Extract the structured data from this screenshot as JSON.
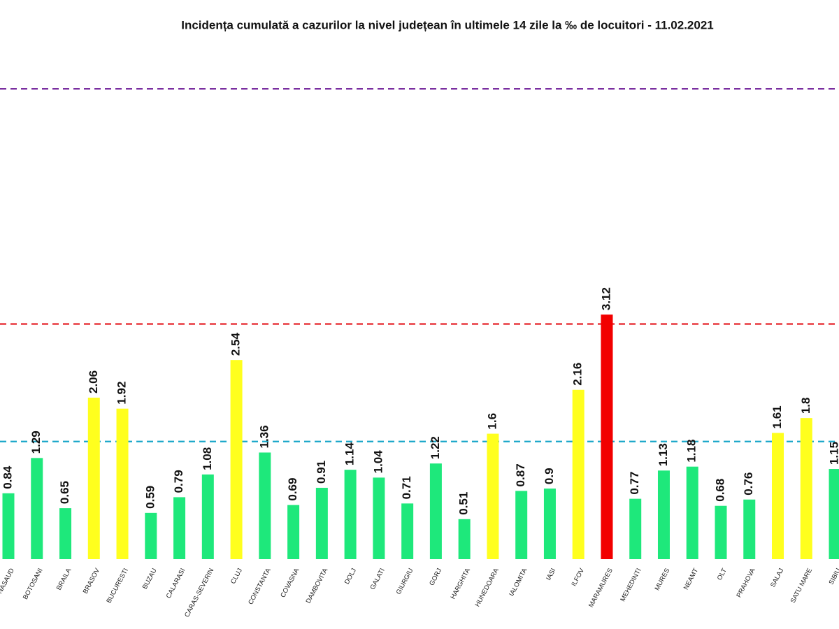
{
  "chart_data": {
    "type": "bar",
    "title": "Incidența cumulată a cazurilor la nivel județean în ultimele 14 zile la ‰ de locuitori - 11.02.2021",
    "categories": [
      "BISTRITA-NASAUD",
      "BOTOSANI",
      "BRAILA",
      "BRASOV",
      "BUCURESTI",
      "BUZAU",
      "CALARASI",
      "CARAS-SEVERIN",
      "CLUJ",
      "CONSTANTA",
      "COVASNA",
      "DAMBOVITA",
      "DOLJ",
      "GALATI",
      "GIURGIU",
      "GORJ",
      "HARGHITA",
      "HUNEDOARA",
      "IALOMITA",
      "IASI",
      "ILFOV",
      "MARAMURES",
      "MEHEDINTI",
      "MURES",
      "NEAMT",
      "OLT",
      "PRAHOVA",
      "SALAJ",
      "SATU MARE",
      "SIBIU"
    ],
    "values": [
      0.84,
      1.29,
      0.65,
      2.06,
      1.92,
      0.59,
      0.79,
      1.08,
      2.54,
      1.36,
      0.69,
      0.91,
      1.14,
      1.04,
      0.71,
      1.22,
      0.51,
      1.6,
      0.87,
      0.9,
      2.16,
      3.12,
      0.77,
      1.13,
      1.18,
      0.68,
      0.76,
      1.61,
      1.8,
      1.15
    ],
    "colors": [
      "#1ee87b",
      "#1ee87b",
      "#1ee87b",
      "#ffff1e",
      "#ffff1e",
      "#1ee87b",
      "#1ee87b",
      "#1ee87b",
      "#ffff1e",
      "#1ee87b",
      "#1ee87b",
      "#1ee87b",
      "#1ee87b",
      "#1ee87b",
      "#1ee87b",
      "#1ee87b",
      "#1ee87b",
      "#ffff1e",
      "#1ee87b",
      "#1ee87b",
      "#ffff1e",
      "#f20000",
      "#1ee87b",
      "#1ee87b",
      "#1ee87b",
      "#1ee87b",
      "#1ee87b",
      "#ffff1e",
      "#ffff1e",
      "#1ee87b"
    ],
    "ylim": [
      0,
      7
    ],
    "reference_lines": [
      {
        "value": 1.5,
        "color": "#1aa7c9"
      },
      {
        "value": 3,
        "color": "#e3141b"
      },
      {
        "value": 6,
        "color": "#7a2fa0"
      }
    ]
  }
}
